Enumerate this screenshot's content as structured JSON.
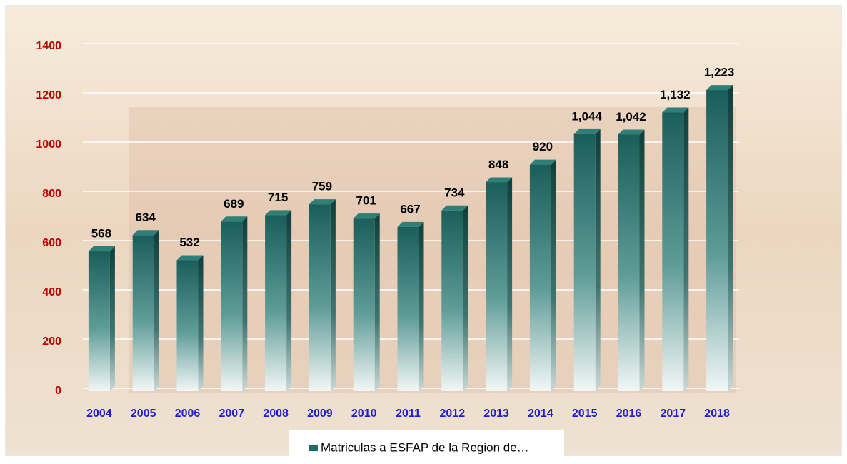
{
  "chart_data": {
    "type": "bar",
    "categories": [
      "2004",
      "2005",
      "2006",
      "2007",
      "2008",
      "2009",
      "2010",
      "2011",
      "2012",
      "2013",
      "2014",
      "2015",
      "2016",
      "2017",
      "2018"
    ],
    "series": [
      {
        "name": "Matriculas a ESFAP de la Region de…",
        "color": "#1f6b66",
        "values": [
          568,
          634,
          532,
          689,
          715,
          759,
          701,
          667,
          734,
          848,
          920,
          1044,
          1042,
          1132,
          1223
        ],
        "value_labels": [
          "568",
          "634",
          "532",
          "689",
          "715",
          "759",
          "701",
          "667",
          "734",
          "848",
          "920",
          "1,044",
          "1,042",
          "1,132",
          "1,223"
        ]
      }
    ],
    "ylim": [
      0,
      1400
    ],
    "yticks": [
      0,
      200,
      400,
      600,
      800,
      1000,
      1200,
      1400
    ],
    "grid": true,
    "legend": "bottom"
  }
}
